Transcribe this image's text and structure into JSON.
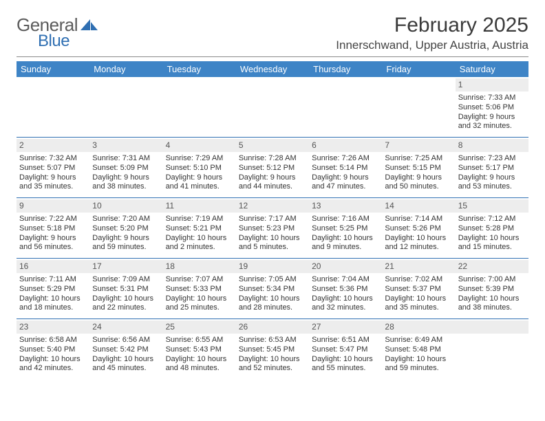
{
  "brand": {
    "part1": "General",
    "part2": "Blue",
    "mark_color": "#2f6fb2",
    "text1_color": "#5b5b5b",
    "text2_color": "#2f6fb2"
  },
  "title": {
    "month": "February 2025",
    "location": "Innerschwand, Upper Austria, Austria"
  },
  "colors": {
    "header_bg": "#3e84c6",
    "header_fg": "#ffffff",
    "rule": "#2f6fb2",
    "daynum_bg": "#ededed",
    "daynum_fg": "#555555",
    "text": "#333333",
    "page_bg": "#ffffff"
  },
  "weekdays": [
    "Sunday",
    "Monday",
    "Tuesday",
    "Wednesday",
    "Thursday",
    "Friday",
    "Saturday"
  ],
  "weeks": [
    [
      null,
      null,
      null,
      null,
      null,
      null,
      {
        "n": "1",
        "sunrise": "Sunrise: 7:33 AM",
        "sunset": "Sunset: 5:06 PM",
        "day1": "Daylight: 9 hours",
        "day2": "and 32 minutes."
      }
    ],
    [
      {
        "n": "2",
        "sunrise": "Sunrise: 7:32 AM",
        "sunset": "Sunset: 5:07 PM",
        "day1": "Daylight: 9 hours",
        "day2": "and 35 minutes."
      },
      {
        "n": "3",
        "sunrise": "Sunrise: 7:31 AM",
        "sunset": "Sunset: 5:09 PM",
        "day1": "Daylight: 9 hours",
        "day2": "and 38 minutes."
      },
      {
        "n": "4",
        "sunrise": "Sunrise: 7:29 AM",
        "sunset": "Sunset: 5:10 PM",
        "day1": "Daylight: 9 hours",
        "day2": "and 41 minutes."
      },
      {
        "n": "5",
        "sunrise": "Sunrise: 7:28 AM",
        "sunset": "Sunset: 5:12 PM",
        "day1": "Daylight: 9 hours",
        "day2": "and 44 minutes."
      },
      {
        "n": "6",
        "sunrise": "Sunrise: 7:26 AM",
        "sunset": "Sunset: 5:14 PM",
        "day1": "Daylight: 9 hours",
        "day2": "and 47 minutes."
      },
      {
        "n": "7",
        "sunrise": "Sunrise: 7:25 AM",
        "sunset": "Sunset: 5:15 PM",
        "day1": "Daylight: 9 hours",
        "day2": "and 50 minutes."
      },
      {
        "n": "8",
        "sunrise": "Sunrise: 7:23 AM",
        "sunset": "Sunset: 5:17 PM",
        "day1": "Daylight: 9 hours",
        "day2": "and 53 minutes."
      }
    ],
    [
      {
        "n": "9",
        "sunrise": "Sunrise: 7:22 AM",
        "sunset": "Sunset: 5:18 PM",
        "day1": "Daylight: 9 hours",
        "day2": "and 56 minutes."
      },
      {
        "n": "10",
        "sunrise": "Sunrise: 7:20 AM",
        "sunset": "Sunset: 5:20 PM",
        "day1": "Daylight: 9 hours",
        "day2": "and 59 minutes."
      },
      {
        "n": "11",
        "sunrise": "Sunrise: 7:19 AM",
        "sunset": "Sunset: 5:21 PM",
        "day1": "Daylight: 10 hours",
        "day2": "and 2 minutes."
      },
      {
        "n": "12",
        "sunrise": "Sunrise: 7:17 AM",
        "sunset": "Sunset: 5:23 PM",
        "day1": "Daylight: 10 hours",
        "day2": "and 5 minutes."
      },
      {
        "n": "13",
        "sunrise": "Sunrise: 7:16 AM",
        "sunset": "Sunset: 5:25 PM",
        "day1": "Daylight: 10 hours",
        "day2": "and 9 minutes."
      },
      {
        "n": "14",
        "sunrise": "Sunrise: 7:14 AM",
        "sunset": "Sunset: 5:26 PM",
        "day1": "Daylight: 10 hours",
        "day2": "and 12 minutes."
      },
      {
        "n": "15",
        "sunrise": "Sunrise: 7:12 AM",
        "sunset": "Sunset: 5:28 PM",
        "day1": "Daylight: 10 hours",
        "day2": "and 15 minutes."
      }
    ],
    [
      {
        "n": "16",
        "sunrise": "Sunrise: 7:11 AM",
        "sunset": "Sunset: 5:29 PM",
        "day1": "Daylight: 10 hours",
        "day2": "and 18 minutes."
      },
      {
        "n": "17",
        "sunrise": "Sunrise: 7:09 AM",
        "sunset": "Sunset: 5:31 PM",
        "day1": "Daylight: 10 hours",
        "day2": "and 22 minutes."
      },
      {
        "n": "18",
        "sunrise": "Sunrise: 7:07 AM",
        "sunset": "Sunset: 5:33 PM",
        "day1": "Daylight: 10 hours",
        "day2": "and 25 minutes."
      },
      {
        "n": "19",
        "sunrise": "Sunrise: 7:05 AM",
        "sunset": "Sunset: 5:34 PM",
        "day1": "Daylight: 10 hours",
        "day2": "and 28 minutes."
      },
      {
        "n": "20",
        "sunrise": "Sunrise: 7:04 AM",
        "sunset": "Sunset: 5:36 PM",
        "day1": "Daylight: 10 hours",
        "day2": "and 32 minutes."
      },
      {
        "n": "21",
        "sunrise": "Sunrise: 7:02 AM",
        "sunset": "Sunset: 5:37 PM",
        "day1": "Daylight: 10 hours",
        "day2": "and 35 minutes."
      },
      {
        "n": "22",
        "sunrise": "Sunrise: 7:00 AM",
        "sunset": "Sunset: 5:39 PM",
        "day1": "Daylight: 10 hours",
        "day2": "and 38 minutes."
      }
    ],
    [
      {
        "n": "23",
        "sunrise": "Sunrise: 6:58 AM",
        "sunset": "Sunset: 5:40 PM",
        "day1": "Daylight: 10 hours",
        "day2": "and 42 minutes."
      },
      {
        "n": "24",
        "sunrise": "Sunrise: 6:56 AM",
        "sunset": "Sunset: 5:42 PM",
        "day1": "Daylight: 10 hours",
        "day2": "and 45 minutes."
      },
      {
        "n": "25",
        "sunrise": "Sunrise: 6:55 AM",
        "sunset": "Sunset: 5:43 PM",
        "day1": "Daylight: 10 hours",
        "day2": "and 48 minutes."
      },
      {
        "n": "26",
        "sunrise": "Sunrise: 6:53 AM",
        "sunset": "Sunset: 5:45 PM",
        "day1": "Daylight: 10 hours",
        "day2": "and 52 minutes."
      },
      {
        "n": "27",
        "sunrise": "Sunrise: 6:51 AM",
        "sunset": "Sunset: 5:47 PM",
        "day1": "Daylight: 10 hours",
        "day2": "and 55 minutes."
      },
      {
        "n": "28",
        "sunrise": "Sunrise: 6:49 AM",
        "sunset": "Sunset: 5:48 PM",
        "day1": "Daylight: 10 hours",
        "day2": "and 59 minutes."
      },
      null
    ]
  ]
}
